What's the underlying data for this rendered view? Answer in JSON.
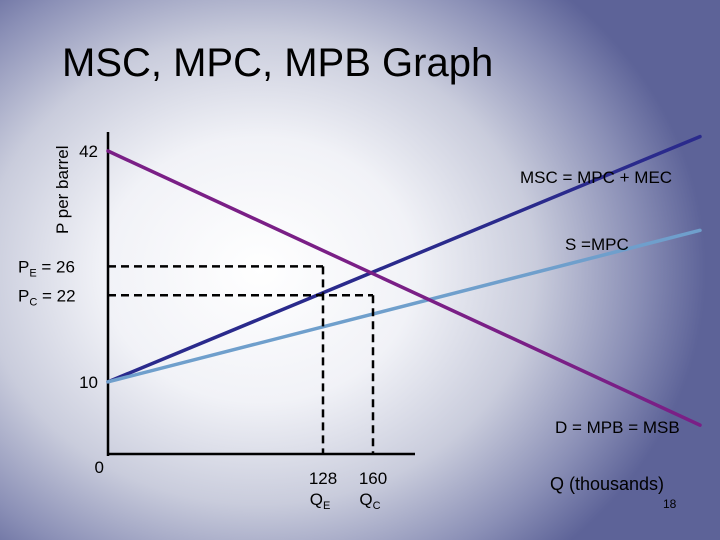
{
  "title": "MSC, MPC, MPB Graph",
  "slide_number": "18",
  "colors": {
    "msc": "#2a2a8c",
    "mpc": "#6f9fcc",
    "demand": "#7a1f86",
    "axis": "#000000"
  },
  "chart_data": {
    "type": "line",
    "title": "MSC, MPC, MPB Graph",
    "xlabel": "Q (thousands)",
    "ylabel": "P per barrel",
    "xlim": [
      0,
      320
    ],
    "ylim": [
      0,
      44
    ],
    "y_ticks": [
      {
        "value": 42,
        "label": "42"
      },
      {
        "value": 10,
        "label": "10"
      },
      {
        "value": 0,
        "label": "0"
      }
    ],
    "y_markers": [
      {
        "value": 26,
        "main": "P",
        "sub": "E",
        "rest": " = 26"
      },
      {
        "value": 22,
        "main": "P",
        "sub": "C",
        "rest": " = 22"
      }
    ],
    "x_markers": [
      {
        "value": 128,
        "label": "128",
        "main": "Q",
        "sub": "E"
      },
      {
        "value": 160,
        "label": "160",
        "main": "Q",
        "sub": "C"
      }
    ],
    "series": [
      {
        "name": "MSC = MPC + MEC",
        "key": "msc",
        "x": [
          0,
          285
        ],
        "y": [
          10,
          44
        ]
      },
      {
        "name": "S =MPC",
        "key": "mpc",
        "x": [
          0,
          285
        ],
        "y": [
          10,
          31
        ]
      },
      {
        "name": "D = MPB = MSB",
        "key": "demand",
        "x": [
          0,
          285
        ],
        "y": [
          42,
          4
        ]
      }
    ],
    "grid": false
  }
}
